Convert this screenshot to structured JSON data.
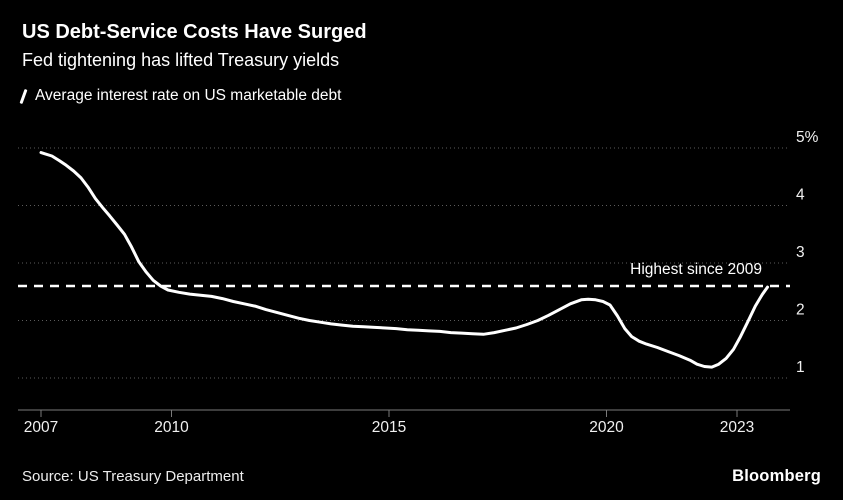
{
  "header": {
    "title": "US Debt-Service Costs Have Surged",
    "subtitle": "Fed tightening has lifted Treasury yields",
    "legend": {
      "label": "Average interest rate on US marketable debt"
    }
  },
  "annotation": {
    "label": "Highest since 2009"
  },
  "footer": {
    "source": "Source: US Treasury Department",
    "brand": "Bloomberg"
  },
  "colors": {
    "background": "#000000",
    "line": "#ffffff",
    "reference_line": "#ffffff",
    "grid": "#5c5c5c",
    "axis": "#7a7a7a",
    "tick_label": "#f0f0f0",
    "text": "#ffffff"
  },
  "chart_data": {
    "type": "line",
    "title": "US Debt-Service Costs Have Surged",
    "subtitle": "Fed tightening has lifted Treasury yields",
    "unit": "%",
    "grid": "horizontal-dotted",
    "legend_position": "top-left",
    "xlim": [
      2007,
      2023.9
    ],
    "ylim": [
      0.45,
      5.15
    ],
    "x_ticks": [
      {
        "value": 2007,
        "label": "2007"
      },
      {
        "value": 2010,
        "label": "2010"
      },
      {
        "value": 2015,
        "label": "2015"
      },
      {
        "value": 2020,
        "label": "2020"
      },
      {
        "value": 2023,
        "label": "2023"
      }
    ],
    "y_ticks": [
      {
        "value": 1,
        "label": "1"
      },
      {
        "value": 2,
        "label": "2"
      },
      {
        "value": 3,
        "label": "3"
      },
      {
        "value": 4,
        "label": "4"
      },
      {
        "value": 5,
        "label": "5%"
      }
    ],
    "reference_line": {
      "value": 2.6,
      "label": "Highest since 2009",
      "style": "dashed"
    },
    "series": [
      {
        "name": "Average interest rate on US marketable debt",
        "points": [
          [
            2007.0,
            4.92
          ],
          [
            2007.08,
            4.9
          ],
          [
            2007.25,
            4.86
          ],
          [
            2007.42,
            4.78
          ],
          [
            2007.58,
            4.7
          ],
          [
            2007.75,
            4.6
          ],
          [
            2007.92,
            4.48
          ],
          [
            2008.08,
            4.32
          ],
          [
            2008.25,
            4.12
          ],
          [
            2008.42,
            3.96
          ],
          [
            2008.58,
            3.82
          ],
          [
            2008.75,
            3.66
          ],
          [
            2008.92,
            3.5
          ],
          [
            2009.08,
            3.28
          ],
          [
            2009.25,
            3.02
          ],
          [
            2009.42,
            2.84
          ],
          [
            2009.58,
            2.7
          ],
          [
            2009.75,
            2.6
          ],
          [
            2009.92,
            2.53
          ],
          [
            2010.17,
            2.49
          ],
          [
            2010.42,
            2.46
          ],
          [
            2010.67,
            2.44
          ],
          [
            2010.92,
            2.42
          ],
          [
            2011.17,
            2.38
          ],
          [
            2011.42,
            2.33
          ],
          [
            2011.67,
            2.29
          ],
          [
            2011.92,
            2.25
          ],
          [
            2012.17,
            2.19
          ],
          [
            2012.42,
            2.14
          ],
          [
            2012.67,
            2.09
          ],
          [
            2012.92,
            2.04
          ],
          [
            2013.17,
            2.0
          ],
          [
            2013.42,
            1.97
          ],
          [
            2013.67,
            1.94
          ],
          [
            2013.92,
            1.92
          ],
          [
            2014.17,
            1.9
          ],
          [
            2014.42,
            1.89
          ],
          [
            2014.67,
            1.88
          ],
          [
            2014.92,
            1.87
          ],
          [
            2015.17,
            1.86
          ],
          [
            2015.42,
            1.84
          ],
          [
            2015.67,
            1.83
          ],
          [
            2015.92,
            1.82
          ],
          [
            2016.17,
            1.81
          ],
          [
            2016.42,
            1.79
          ],
          [
            2016.67,
            1.78
          ],
          [
            2016.92,
            1.77
          ],
          [
            2017.17,
            1.76
          ],
          [
            2017.42,
            1.79
          ],
          [
            2017.67,
            1.83
          ],
          [
            2017.92,
            1.87
          ],
          [
            2018.17,
            1.93
          ],
          [
            2018.42,
            2.0
          ],
          [
            2018.67,
            2.09
          ],
          [
            2018.92,
            2.19
          ],
          [
            2019.17,
            2.29
          ],
          [
            2019.42,
            2.36
          ],
          [
            2019.58,
            2.37
          ],
          [
            2019.75,
            2.36
          ],
          [
            2019.92,
            2.33
          ],
          [
            2020.08,
            2.27
          ],
          [
            2020.25,
            2.08
          ],
          [
            2020.42,
            1.86
          ],
          [
            2020.58,
            1.72
          ],
          [
            2020.75,
            1.64
          ],
          [
            2020.92,
            1.59
          ],
          [
            2021.17,
            1.53
          ],
          [
            2021.42,
            1.46
          ],
          [
            2021.67,
            1.39
          ],
          [
            2021.92,
            1.31
          ],
          [
            2022.08,
            1.24
          ],
          [
            2022.25,
            1.2
          ],
          [
            2022.42,
            1.19
          ],
          [
            2022.58,
            1.24
          ],
          [
            2022.75,
            1.34
          ],
          [
            2022.92,
            1.5
          ],
          [
            2023.08,
            1.72
          ],
          [
            2023.25,
            1.98
          ],
          [
            2023.42,
            2.25
          ],
          [
            2023.58,
            2.45
          ],
          [
            2023.7,
            2.58
          ]
        ]
      }
    ]
  }
}
